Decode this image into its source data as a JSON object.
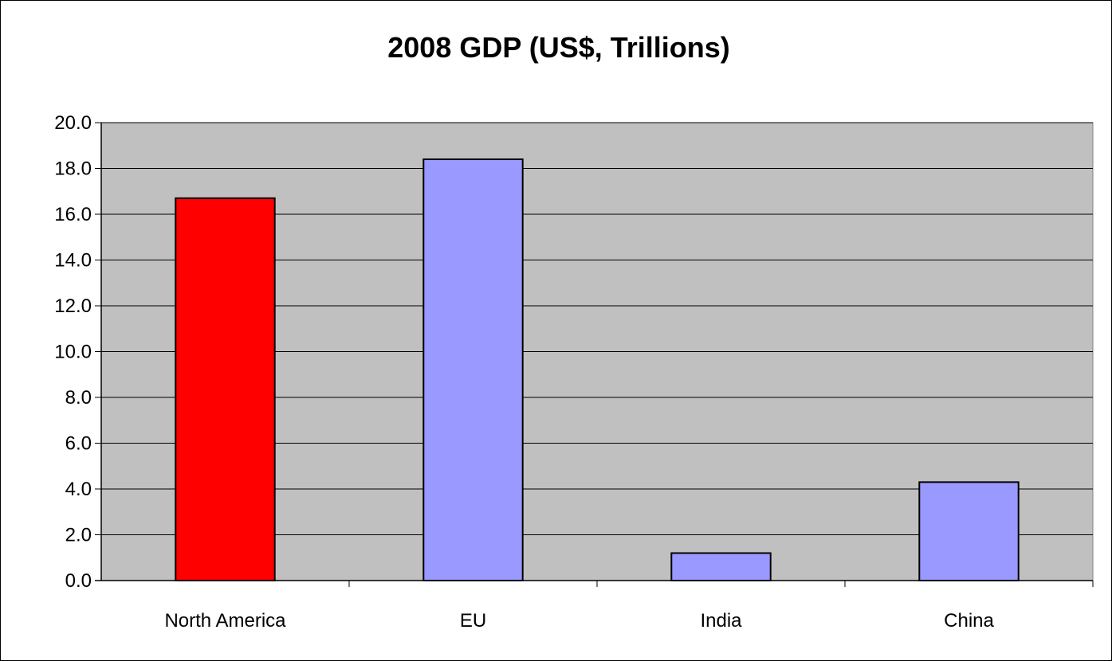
{
  "chart_data": {
    "type": "bar",
    "title": "2008 GDP (US$, Trillions)",
    "categories": [
      "North America",
      "EU",
      "India",
      "China"
    ],
    "values": [
      16.7,
      18.4,
      1.2,
      4.3
    ],
    "bar_colors": [
      "#FF0000",
      "#9999FF",
      "#9999FF",
      "#9999FF"
    ],
    "ylim": [
      0,
      20
    ],
    "y_ticks": [
      "0.0",
      "2.0",
      "4.0",
      "6.0",
      "8.0",
      "10.0",
      "12.0",
      "14.0",
      "16.0",
      "18.0",
      "20.0"
    ],
    "grid": true,
    "plot_background": "#C0C0C0",
    "legend": "none"
  }
}
